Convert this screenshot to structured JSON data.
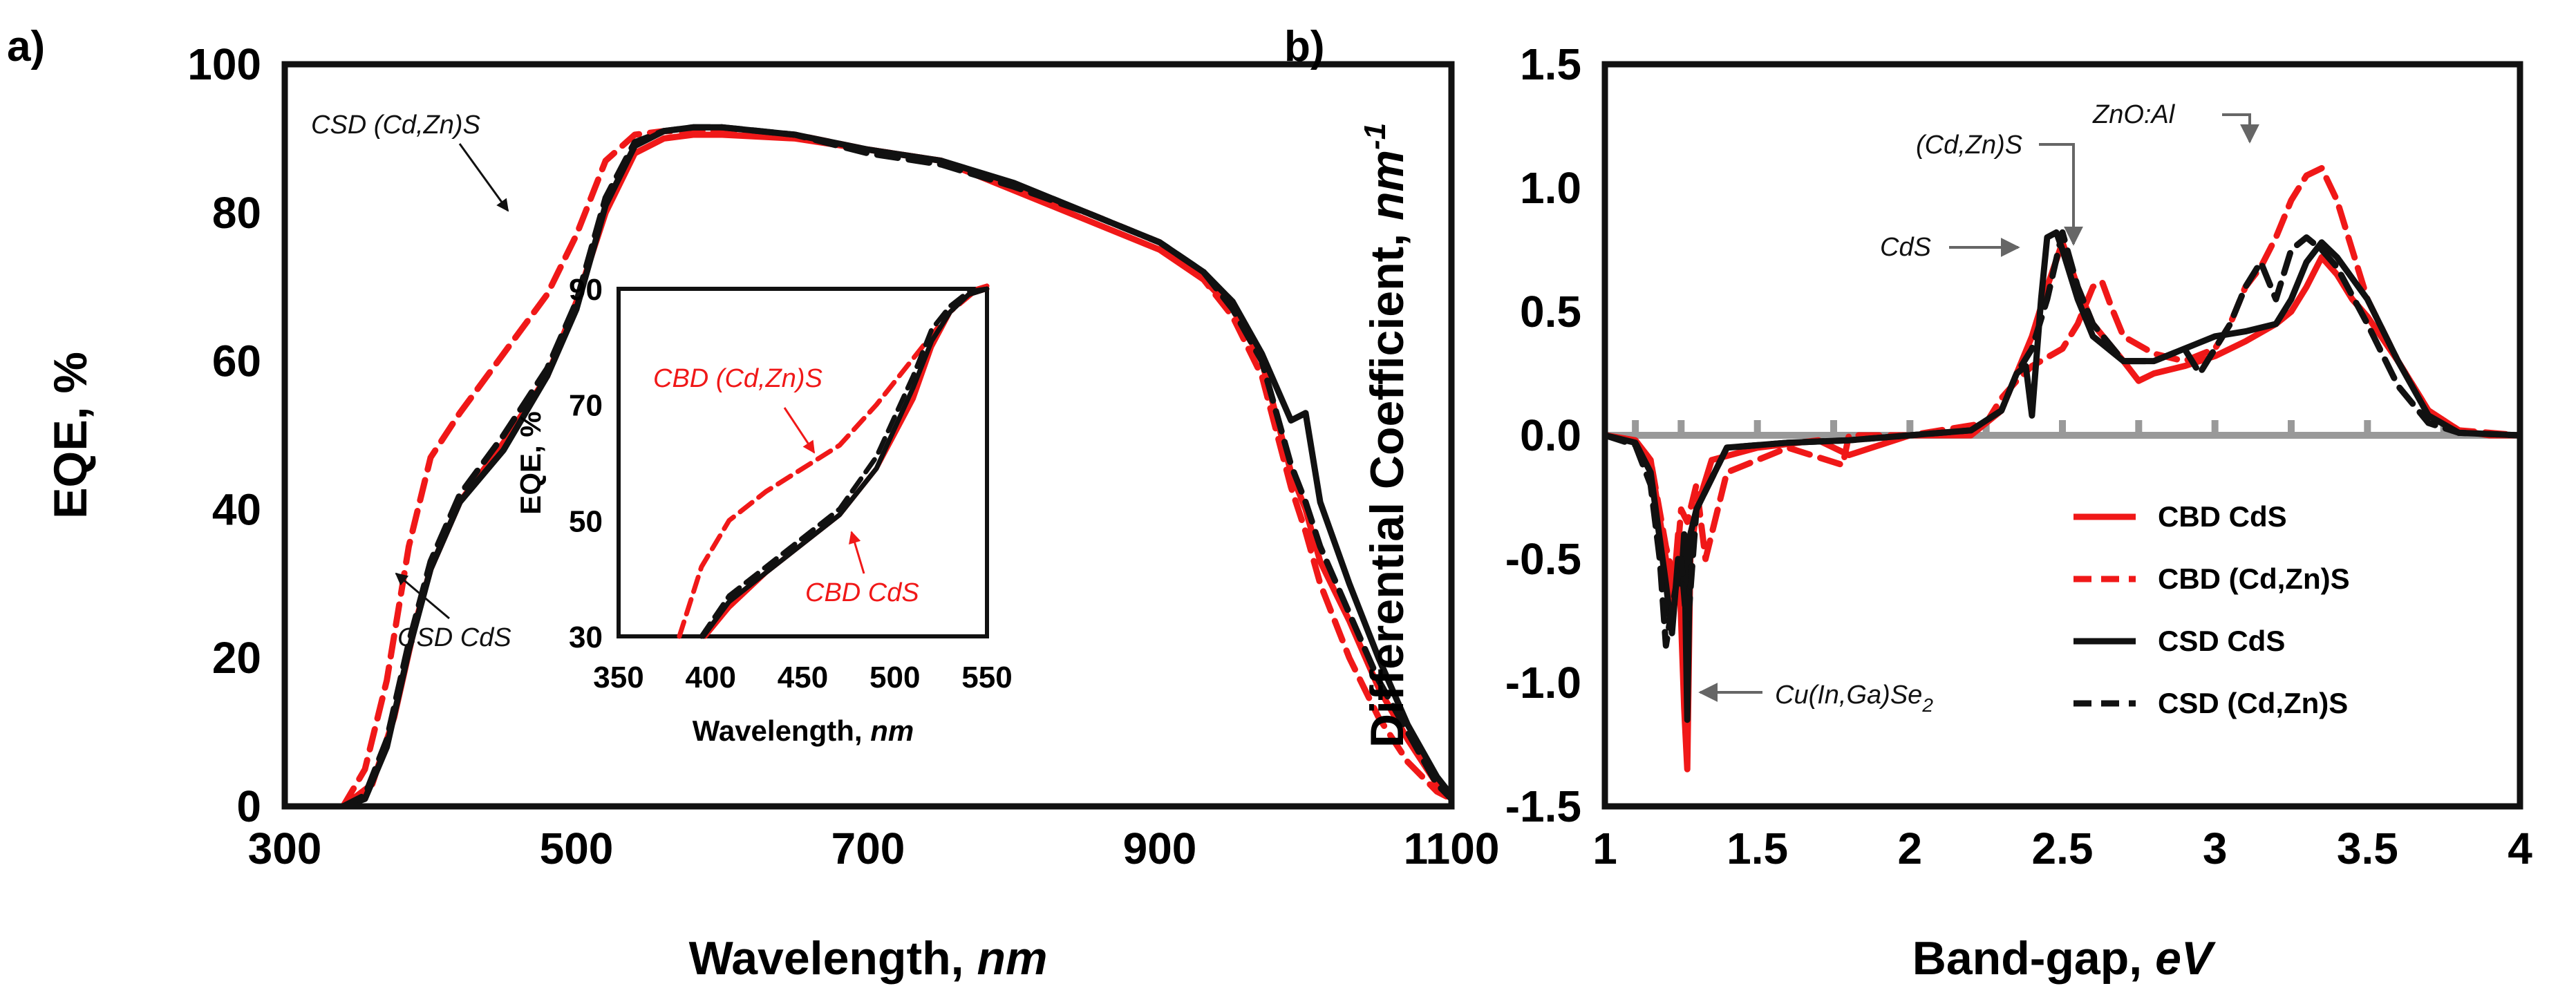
{
  "colors": {
    "red": "#f01818",
    "black": "#111111",
    "zero_line": "#999999",
    "annotation": "#666666"
  },
  "chart_data": [
    {
      "panel": "a)",
      "type": "line",
      "title": "",
      "xlabel": "Wavelength, ",
      "xlabel_unit": "nm",
      "ylabel": "EQE, %",
      "xlim": [
        300,
        1100
      ],
      "ylim": [
        0,
        100
      ],
      "xticks": [
        "300",
        "500",
        "700",
        "900",
        "1100"
      ],
      "yticks": [
        "0",
        "20",
        "40",
        "60",
        "80",
        "100"
      ],
      "series": [
        {
          "name": "CBD CdS",
          "color": "red",
          "dash": false,
          "x": [
            340,
            360,
            375,
            390,
            400,
            420,
            450,
            480,
            500,
            520,
            540,
            560,
            580,
            600,
            650,
            700,
            750,
            800,
            850,
            900,
            930,
            950,
            970,
            990,
            1000,
            1010,
            1030,
            1050,
            1070,
            1090,
            1100
          ],
          "y": [
            0,
            3,
            12,
            25,
            32,
            41,
            49,
            58,
            68,
            80,
            88,
            90,
            90.5,
            90.5,
            90,
            88.5,
            87,
            83,
            79,
            75,
            71,
            67,
            60,
            45,
            40,
            33,
            25,
            16,
            9,
            3,
            1
          ]
        },
        {
          "name": "CBD (Cd,Zn)S",
          "color": "red",
          "dash": true,
          "x": [
            340,
            355,
            370,
            385,
            400,
            420,
            450,
            480,
            500,
            520,
            540,
            560,
            580,
            600,
            650,
            700,
            750,
            800,
            850,
            900,
            930,
            950,
            970,
            990,
            1000,
            1010,
            1030,
            1050,
            1070,
            1090,
            1100
          ],
          "y": [
            0,
            5,
            17,
            35,
            47,
            53,
            61,
            69,
            77,
            87,
            90.5,
            91,
            91,
            91,
            90.5,
            88.5,
            87,
            83.5,
            80,
            76,
            71,
            66,
            58,
            43,
            37,
            30,
            20,
            12,
            6,
            2,
            1
          ]
        },
        {
          "name": "CSD CdS",
          "color": "black",
          "dash": false,
          "x": [
            340,
            355,
            370,
            385,
            400,
            420,
            450,
            480,
            500,
            520,
            540,
            560,
            580,
            600,
            650,
            700,
            750,
            800,
            850,
            900,
            930,
            950,
            970,
            990,
            1000,
            1010,
            1030,
            1050,
            1070,
            1090,
            1100
          ],
          "y": [
            0,
            1,
            8,
            21,
            32,
            41,
            48,
            58,
            67,
            81,
            89,
            91,
            91.5,
            91.5,
            90.5,
            88.5,
            87,
            84,
            80,
            76,
            72,
            68,
            61,
            52,
            53,
            41,
            30,
            20,
            11,
            4,
            1.5
          ]
        },
        {
          "name": "CSD (Cd,Zn)S",
          "color": "black",
          "dash": true,
          "x": [
            340,
            355,
            370,
            385,
            400,
            420,
            450,
            480,
            500,
            520,
            540,
            560,
            580,
            600,
            650,
            700,
            750,
            800,
            850,
            900,
            930,
            950,
            970,
            990,
            1000,
            1010,
            1030,
            1050,
            1070,
            1090,
            1100
          ],
          "y": [
            0,
            1.5,
            9,
            22,
            33,
            42,
            50,
            59,
            68,
            82,
            89.5,
            91,
            91.5,
            91.5,
            90.5,
            88,
            86.5,
            83.5,
            80,
            76,
            72,
            67,
            60,
            46,
            41,
            35,
            26,
            17,
            10,
            3,
            1
          ]
        }
      ],
      "annotations": [
        {
          "text": "CSD (Cd,Zn)S",
          "color": "black"
        },
        {
          "text": "CSD CdS",
          "color": "black"
        }
      ],
      "inset": {
        "xlabel": "Wavelength, ",
        "xlabel_unit": "nm",
        "ylabel": "EQE, %",
        "xlim": [
          350,
          550
        ],
        "ylim": [
          30,
          90
        ],
        "xticks": [
          "350",
          "400",
          "450",
          "500",
          "550"
        ],
        "yticks": [
          "30",
          "50",
          "70",
          "90"
        ],
        "series": [
          {
            "name": "CBD CdS",
            "color": "red",
            "dash": false,
            "x": [
              397,
              410,
              430,
              450,
              470,
              490,
              500,
              510,
              520,
              530,
              540,
              550
            ],
            "y": [
              30,
              35,
              41,
              46,
              51,
              59,
              65,
              71,
              80,
              86,
              89,
              90
            ]
          },
          {
            "name": "CBD (Cd,Zn)S",
            "color": "red",
            "dash": true,
            "x": [
              383,
              395,
              410,
              430,
              450,
              470,
              490,
              510,
              530,
              545,
              550
            ],
            "y": [
              30,
              42,
              50,
              55,
              59,
              63,
              70,
              78,
              86,
              90,
              90.5
            ]
          },
          {
            "name": "CSD CdS",
            "color": "black",
            "dash": false,
            "x": [
              396,
              410,
              430,
              450,
              470,
              490,
              500,
              510,
              520,
              530,
              540,
              550
            ],
            "y": [
              30,
              36,
              41,
              46,
              51,
              59,
              66,
              73,
              81,
              86,
              89,
              90
            ]
          },
          {
            "name": "CSD (Cd,Zn)S",
            "color": "black",
            "dash": true,
            "x": [
              395,
              410,
              430,
              450,
              470,
              490,
              500,
              510,
              520,
              530,
              540,
              550
            ],
            "y": [
              30,
              37,
              42,
              47,
              52,
              61,
              68,
              75,
              83,
              87,
              89.5,
              90
            ]
          }
        ],
        "annotations": [
          {
            "text": "CBD (Cd,Zn)S",
            "color": "red"
          },
          {
            "text": "CBD CdS",
            "color": "red"
          }
        ]
      }
    },
    {
      "panel": "b)",
      "type": "line",
      "title": "",
      "xlabel": "Band-gap, ",
      "xlabel_unit": "eV",
      "ylabel": "Differential Coefficient, ",
      "ylabel_unit": "nm",
      "ylabel_unit_sup": "-1",
      "xlim": [
        1,
        4
      ],
      "ylim": [
        -1.5,
        1.5
      ],
      "xticks": [
        "1",
        "1.5",
        "2",
        "2.5",
        "3",
        "3.5",
        "4"
      ],
      "yticks": [
        "1.5",
        "1.0",
        "0.5",
        "0.0",
        "-0.5",
        "-1.0",
        "-1.5"
      ],
      "series": [
        {
          "name": "CBD CdS",
          "color": "red",
          "dash": false,
          "x": [
            1.0,
            1.1,
            1.15,
            1.2,
            1.22,
            1.24,
            1.26,
            1.27,
            1.28,
            1.3,
            1.35,
            1.5,
            1.7,
            1.8,
            2.0,
            2.2,
            2.3,
            2.35,
            2.4,
            2.45,
            2.5,
            2.55,
            2.6,
            2.7,
            2.75,
            2.8,
            2.9,
            3.0,
            3.1,
            3.2,
            3.25,
            3.3,
            3.35,
            3.4,
            3.45,
            3.5,
            3.6,
            3.7,
            3.8,
            3.9,
            4.0
          ],
          "y": [
            0,
            -0.02,
            -0.1,
            -0.5,
            -0.7,
            -0.4,
            -1.1,
            -1.35,
            -0.5,
            -0.3,
            -0.1,
            -0.05,
            -0.02,
            -0.08,
            0,
            0,
            0.1,
            0.25,
            0.4,
            0.6,
            0.78,
            0.6,
            0.45,
            0.3,
            0.22,
            0.25,
            0.28,
            0.32,
            0.38,
            0.45,
            0.5,
            0.6,
            0.72,
            0.65,
            0.55,
            0.48,
            0.3,
            0.1,
            0.02,
            0,
            0
          ]
        },
        {
          "name": "CBD (Cd,Zn)S",
          "color": "red",
          "dash": true,
          "x": [
            1.0,
            1.1,
            1.15,
            1.2,
            1.23,
            1.25,
            1.27,
            1.3,
            1.33,
            1.4,
            1.6,
            1.78,
            1.8,
            2.0,
            2.25,
            2.3,
            2.35,
            2.4,
            2.5,
            2.55,
            2.6,
            2.63,
            2.66,
            2.7,
            2.8,
            2.9,
            3.0,
            3.05,
            3.1,
            3.15,
            3.2,
            3.25,
            3.3,
            3.35,
            3.4,
            3.5,
            3.6,
            3.7,
            3.8,
            4.0
          ],
          "y": [
            0,
            -0.02,
            -0.1,
            -0.45,
            -0.6,
            -0.3,
            -0.35,
            -0.2,
            -0.5,
            -0.15,
            -0.05,
            -0.12,
            0,
            0,
            0.05,
            0.15,
            0.22,
            0.28,
            0.35,
            0.45,
            0.6,
            0.62,
            0.52,
            0.4,
            0.33,
            0.3,
            0.35,
            0.45,
            0.6,
            0.68,
            0.8,
            0.95,
            1.05,
            1.08,
            0.95,
            0.55,
            0.3,
            0.1,
            0.02,
            0
          ]
        },
        {
          "name": "CSD CdS",
          "color": "black",
          "dash": false,
          "x": [
            1.0,
            1.1,
            1.15,
            1.2,
            1.22,
            1.24,
            1.25,
            1.26,
            1.27,
            1.28,
            1.3,
            1.4,
            1.6,
            1.8,
            2.0,
            2.2,
            2.3,
            2.35,
            2.38,
            2.4,
            2.43,
            2.45,
            2.48,
            2.5,
            2.55,
            2.6,
            2.7,
            2.8,
            2.9,
            3.0,
            3.1,
            3.2,
            3.25,
            3.3,
            3.35,
            3.4,
            3.5,
            3.6,
            3.7,
            3.8,
            4.0
          ],
          "y": [
            0,
            -0.03,
            -0.15,
            -0.6,
            -0.8,
            -0.5,
            -0.6,
            -0.4,
            -1.15,
            -0.4,
            -0.3,
            -0.05,
            -0.03,
            -0.02,
            0,
            0.02,
            0.1,
            0.25,
            0.28,
            0.08,
            0.55,
            0.8,
            0.82,
            0.75,
            0.55,
            0.4,
            0.3,
            0.3,
            0.35,
            0.4,
            0.42,
            0.45,
            0.55,
            0.7,
            0.78,
            0.72,
            0.55,
            0.3,
            0.08,
            0.01,
            0
          ]
        },
        {
          "name": "CSD (Cd,Zn)S",
          "color": "black",
          "dash": true,
          "x": [
            1.0,
            1.1,
            1.15,
            1.18,
            1.2,
            1.22,
            1.25,
            1.27,
            1.3,
            1.4,
            1.6,
            1.8,
            2.0,
            2.2,
            2.3,
            2.35,
            2.4,
            2.45,
            2.5,
            2.55,
            2.6,
            2.7,
            2.8,
            2.9,
            2.95,
            3.0,
            3.05,
            3.1,
            3.15,
            3.2,
            3.25,
            3.3,
            3.35,
            3.4,
            3.5,
            3.6,
            3.7,
            3.8,
            4.0
          ],
          "y": [
            0,
            -0.04,
            -0.2,
            -0.5,
            -0.85,
            -0.7,
            -0.5,
            -0.8,
            -0.3,
            -0.05,
            -0.03,
            -0.02,
            0,
            0.02,
            0.1,
            0.25,
            0.35,
            0.55,
            0.82,
            0.6,
            0.45,
            0.3,
            0.3,
            0.35,
            0.25,
            0.35,
            0.45,
            0.6,
            0.7,
            0.55,
            0.75,
            0.8,
            0.75,
            0.68,
            0.45,
            0.2,
            0.05,
            0.01,
            0
          ]
        }
      ],
      "zero_line": {
        "y": 0,
        "tick_x": [
          1.1,
          1.25,
          1.5,
          1.75,
          2.0,
          2.25,
          2.5,
          2.75,
          3.0,
          3.25,
          3.5,
          3.75
        ]
      },
      "legend": {
        "placement": "lower-right",
        "entries": [
          "CBD CdS",
          "CBD (Cd,Zn)S",
          "CSD CdS",
          "CSD (Cd,Zn)S"
        ]
      },
      "annotations": [
        {
          "text": "ZnO:Al",
          "target": [
            3.35,
            1.0
          ]
        },
        {
          "text": "(Cd,Zn)S",
          "target": [
            2.64,
            0.7
          ]
        },
        {
          "text": "CdS",
          "target": [
            2.45,
            0.72
          ]
        },
        {
          "text": "Cu(In,Ga)Se",
          "sub": "2",
          "target": [
            1.28,
            -1.07
          ]
        }
      ]
    }
  ]
}
